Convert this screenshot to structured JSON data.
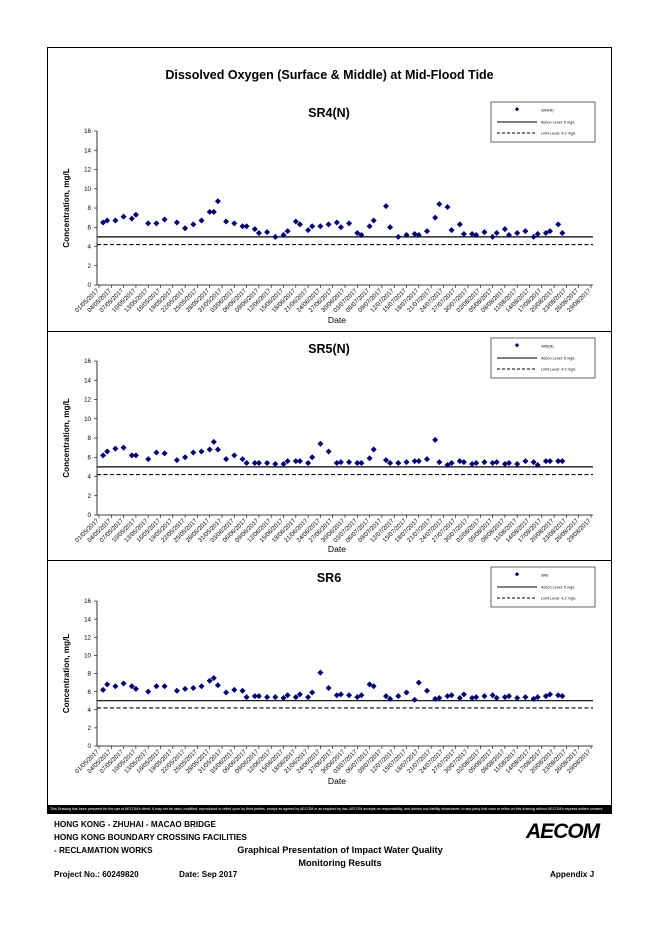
{
  "page": {
    "main_title": "Dissolved Oxygen (Surface & Middle) at Mid-Flood Tide",
    "disclaimer": "This Drawing has been prepared for the use of AECOM's client. It may not be used, modified, reproduced or relied upon by third parties, except as agreed by AECOM or as required by law. AECOM accepts no responsibility, and denies any liability whatsoever, to any party that uses or relies on this drawing without AECOM's express written consent.",
    "footer": {
      "line1": "HONG KONG - ZHUHAI - MACAO BRIDGE",
      "line2": "HONG KONG BOUNDARY CROSSING FACILITIES",
      "line3": "- RECLAMATION WORKS",
      "center_line1": "Graphical Presentation of Impact Water Quality",
      "center_line2": "Monitoring Results",
      "project": "Project No.: 60249820",
      "date": "Date: Sep 2017",
      "appendix": "Appendix J",
      "logo": "AECOM"
    }
  },
  "chart_data": [
    {
      "type": "scatter",
      "title": "SR4(N)",
      "xlabel": "Date",
      "ylabel": "Concentration, mg/L",
      "ylim": [
        0,
        16
      ],
      "yticks": [
        0,
        2,
        4,
        6,
        8,
        10,
        12,
        14,
        16
      ],
      "categories": [
        "01/05/2017",
        "04/05/2017",
        "07/05/2017",
        "10/05/2017",
        "13/05/2017",
        "16/05/2017",
        "19/05/2017",
        "22/05/2017",
        "25/05/2017",
        "28/05/2017",
        "31/05/2017",
        "03/06/2017",
        "06/06/2017",
        "09/06/2017",
        "12/06/2017",
        "15/06/2017",
        "18/06/2017",
        "21/06/2017",
        "24/06/2017",
        "27/06/2017",
        "30/06/2017",
        "03/07/2017",
        "06/07/2017",
        "09/07/2017",
        "12/07/2017",
        "15/07/2017",
        "18/07/2017",
        "21/07/2017",
        "24/07/2017",
        "27/07/2017",
        "30/07/2017",
        "02/08/2017",
        "05/08/2017",
        "08/08/2017",
        "11/08/2017",
        "14/08/2017",
        "17/08/2017",
        "20/08/2017",
        "23/08/2017",
        "26/08/2017",
        "29/08/2017"
      ],
      "grid": false,
      "legend_position": "top-right",
      "legend": [
        "SR4(N)",
        "Action Level: 5 mg/L",
        "Limit Level: 4.2 mg/L"
      ],
      "action_level": 5,
      "limit_level": 4.2,
      "x": [
        1,
        2,
        4,
        6,
        8,
        9,
        12,
        14,
        16,
        19,
        21,
        23,
        25,
        27,
        28,
        29,
        31,
        33,
        35,
        36,
        38,
        39,
        41,
        43,
        45,
        46,
        48,
        49,
        51,
        52,
        54,
        56,
        58,
        59,
        61,
        63,
        64,
        66,
        67,
        70,
        71,
        73,
        75,
        77,
        78,
        80,
        82,
        83,
        85,
        86,
        88,
        89,
        91,
        92,
        94,
        96,
        97,
        99,
        100,
        102,
        104,
        106,
        107,
        109,
        110,
        112,
        113
      ],
      "values": [
        6.5,
        6.7,
        6.7,
        7.1,
        6.9,
        7.3,
        6.4,
        6.4,
        6.8,
        6.5,
        5.9,
        6.3,
        6.7,
        7.6,
        7.6,
        8.7,
        6.6,
        6.4,
        6.1,
        6.1,
        5.8,
        5.4,
        5.5,
        5.0,
        5.2,
        5.6,
        6.6,
        6.3,
        5.7,
        6.1,
        6.1,
        6.3,
        6.5,
        6.0,
        6.4,
        5.4,
        5.2,
        6.1,
        6.7,
        8.2,
        6.0,
        5.0,
        5.2,
        5.3,
        5.2,
        5.6,
        7.0,
        8.4,
        8.1,
        5.7,
        6.3,
        5.3,
        5.3,
        5.2,
        5.5,
        5.0,
        5.4,
        5.8,
        5.2,
        5.4,
        5.6,
        5.0,
        5.3,
        5.4,
        5.6,
        6.3,
        5.4
      ]
    },
    {
      "type": "scatter",
      "title": "SR5(N)",
      "xlabel": "Date",
      "ylabel": "Concentration, mg/L",
      "ylim": [
        0,
        16
      ],
      "yticks": [
        0,
        2,
        4,
        6,
        8,
        10,
        12,
        14,
        16
      ],
      "categories": [
        "01/05/2017",
        "04/05/2017",
        "07/05/2017",
        "10/05/2017",
        "13/05/2017",
        "16/05/2017",
        "19/05/2017",
        "22/05/2017",
        "25/05/2017",
        "28/05/2017",
        "31/05/2017",
        "03/06/2017",
        "06/06/2017",
        "09/06/2017",
        "12/06/2017",
        "15/06/2017",
        "18/06/2017",
        "21/06/2017",
        "24/06/2017",
        "27/06/2017",
        "30/06/2017",
        "03/07/2017",
        "06/07/2017",
        "09/07/2017",
        "12/07/2017",
        "15/07/2017",
        "18/07/2017",
        "21/07/2017",
        "24/07/2017",
        "27/07/2017",
        "30/07/2017",
        "02/08/2017",
        "05/08/2017",
        "08/08/2017",
        "11/08/2017",
        "14/08/2017",
        "17/08/2017",
        "20/08/2017",
        "23/08/2017",
        "26/08/2017",
        "29/08/2017"
      ],
      "grid": false,
      "legend_position": "top-right",
      "legend": [
        "SR5(N)",
        "Action Level: 5 mg/L",
        "Limit Level: 4.2 mg/L"
      ],
      "action_level": 5,
      "limit_level": 4.2,
      "x": [
        1,
        2,
        4,
        6,
        8,
        9,
        12,
        14,
        16,
        19,
        21,
        23,
        25,
        27,
        28,
        29,
        31,
        33,
        35,
        36,
        38,
        39,
        41,
        43,
        45,
        46,
        48,
        49,
        51,
        52,
        54,
        56,
        58,
        59,
        61,
        63,
        64,
        66,
        67,
        70,
        71,
        73,
        75,
        77,
        78,
        80,
        82,
        83,
        85,
        86,
        88,
        89,
        91,
        92,
        94,
        96,
        97,
        99,
        100,
        102,
        104,
        106,
        107,
        109,
        110,
        112,
        113
      ],
      "values": [
        6.2,
        6.6,
        6.9,
        7.0,
        6.2,
        6.2,
        5.8,
        6.5,
        6.4,
        5.7,
        6.0,
        6.5,
        6.6,
        6.8,
        7.6,
        6.8,
        5.8,
        6.2,
        5.8,
        5.4,
        5.4,
        5.4,
        5.4,
        5.3,
        5.3,
        5.6,
        5.6,
        5.6,
        5.4,
        6.0,
        7.4,
        6.6,
        5.4,
        5.5,
        5.5,
        5.4,
        5.4,
        5.9,
        6.8,
        5.7,
        5.4,
        5.4,
        5.5,
        5.6,
        5.6,
        5.8,
        7.8,
        5.5,
        5.2,
        5.4,
        5.6,
        5.5,
        5.3,
        5.4,
        5.5,
        5.4,
        5.5,
        5.3,
        5.4,
        5.3,
        5.6,
        5.5,
        5.2,
        5.6,
        5.6,
        5.6,
        5.6
      ]
    },
    {
      "type": "scatter",
      "title": "SR6",
      "xlabel": "Date",
      "ylabel": "Concentration, mg/L",
      "ylim": [
        0,
        16
      ],
      "yticks": [
        0,
        2,
        4,
        6,
        8,
        10,
        12,
        14,
        16
      ],
      "categories": [
        "01/05/2017",
        "04/05/2017",
        "07/05/2017",
        "10/05/2017",
        "13/05/2017",
        "16/05/2017",
        "19/05/2017",
        "22/05/2017",
        "25/05/2017",
        "28/05/2017",
        "31/05/2017",
        "03/06/2017",
        "06/06/2017",
        "09/06/2017",
        "12/06/2017",
        "15/06/2017",
        "18/06/2017",
        "21/06/2017",
        "24/06/2017",
        "27/06/2017",
        "30/06/2017",
        "03/07/2017",
        "06/07/2017",
        "09/07/2017",
        "12/07/2017",
        "15/07/2017",
        "18/07/2017",
        "21/07/2017",
        "24/07/2017",
        "27/07/2017",
        "30/07/2017",
        "02/08/2017",
        "05/08/2017",
        "08/08/2017",
        "11/08/2017",
        "14/08/2017",
        "17/08/2017",
        "20/08/2017",
        "23/08/2017",
        "26/08/2017",
        "29/08/2017"
      ],
      "grid": false,
      "legend_position": "top-right",
      "legend": [
        "SR6",
        "Action Level: 5 mg/L",
        "Limit Level: 4.2 mg/L"
      ],
      "action_level": 5,
      "limit_level": 4.2,
      "x": [
        1,
        2,
        4,
        6,
        8,
        9,
        12,
        14,
        16,
        19,
        21,
        23,
        25,
        27,
        28,
        29,
        31,
        33,
        35,
        36,
        38,
        39,
        41,
        43,
        45,
        46,
        48,
        49,
        51,
        52,
        54,
        56,
        58,
        59,
        61,
        63,
        64,
        66,
        67,
        70,
        71,
        73,
        75,
        77,
        78,
        80,
        82,
        83,
        85,
        86,
        88,
        89,
        91,
        92,
        94,
        96,
        97,
        99,
        100,
        102,
        104,
        106,
        107,
        109,
        110,
        112,
        113
      ],
      "values": [
        6.2,
        6.8,
        6.6,
        6.9,
        6.6,
        6.3,
        6.0,
        6.6,
        6.6,
        6.1,
        6.3,
        6.4,
        6.6,
        7.2,
        7.5,
        6.7,
        5.9,
        6.2,
        6.1,
        5.4,
        5.5,
        5.5,
        5.4,
        5.4,
        5.3,
        5.6,
        5.4,
        5.7,
        5.4,
        5.9,
        8.1,
        6.4,
        5.6,
        5.7,
        5.6,
        5.4,
        5.6,
        6.8,
        6.6,
        5.5,
        5.2,
        5.5,
        5.9,
        5.1,
        7.0,
        6.1,
        5.2,
        5.3,
        5.5,
        5.6,
        5.3,
        5.7,
        5.3,
        5.4,
        5.5,
        5.6,
        5.3,
        5.4,
        5.5,
        5.3,
        5.4,
        5.2,
        5.4,
        5.5,
        5.7,
        5.6,
        5.5
      ]
    }
  ]
}
